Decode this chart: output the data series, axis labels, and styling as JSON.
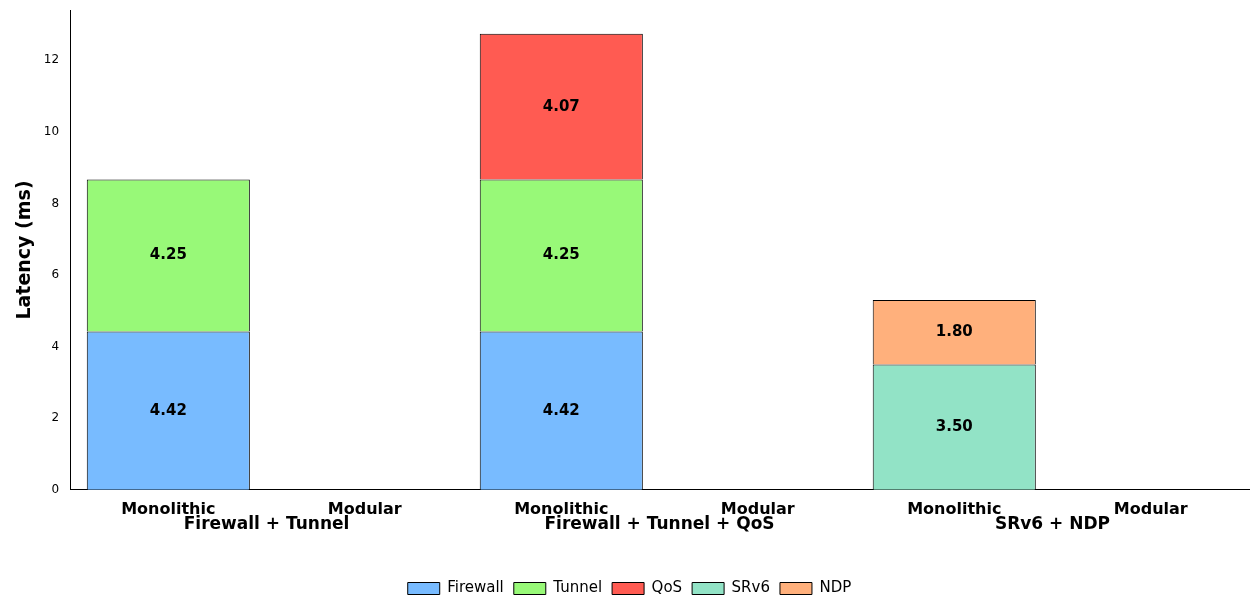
{
  "chart_data": {
    "type": "bar",
    "stacked": true,
    "ylabel": "Latency (ms)",
    "categories": [
      "Monolithic",
      "Modular",
      "Monolithic",
      "Modular",
      "Monolithic",
      "Modular"
    ],
    "annotations": [
      "Firewall + Tunnel",
      "Firewall + Tunnel + QoS",
      "SRv6 + NDP"
    ],
    "series": [
      {
        "name": "Firewall",
        "color": "#78bbff",
        "values": [
          4.42,
          null,
          4.42,
          null,
          null,
          null
        ],
        "value_labels": [
          "4.42",
          null,
          "4.42",
          null,
          null,
          null
        ]
      },
      {
        "name": "Tunnel",
        "color": "#98f978",
        "values": [
          4.25,
          null,
          4.25,
          null,
          null,
          null
        ],
        "value_labels": [
          "4.25",
          null,
          "4.25",
          null,
          null,
          null
        ]
      },
      {
        "name": "QoS",
        "color": "#ff5b52",
        "values": [
          null,
          null,
          4.07,
          null,
          null,
          null
        ],
        "value_labels": [
          null,
          null,
          "4.07",
          null,
          null,
          null
        ]
      },
      {
        "name": "SRv6",
        "color": "#92e3c6",
        "values": [
          null,
          null,
          null,
          null,
          3.5,
          null
        ],
        "value_labels": [
          null,
          null,
          null,
          null,
          "3.50",
          null
        ]
      },
      {
        "name": "NDP",
        "color": "#ffb07c",
        "values": [
          null,
          null,
          null,
          null,
          1.8,
          null
        ],
        "value_labels": [
          null,
          null,
          null,
          null,
          "1.80",
          null
        ]
      }
    ],
    "ylim": [
      0,
      13.4
    ],
    "yticks": [
      0,
      2,
      4,
      6,
      8,
      10,
      12
    ],
    "grid": false,
    "legend": "bottom"
  }
}
